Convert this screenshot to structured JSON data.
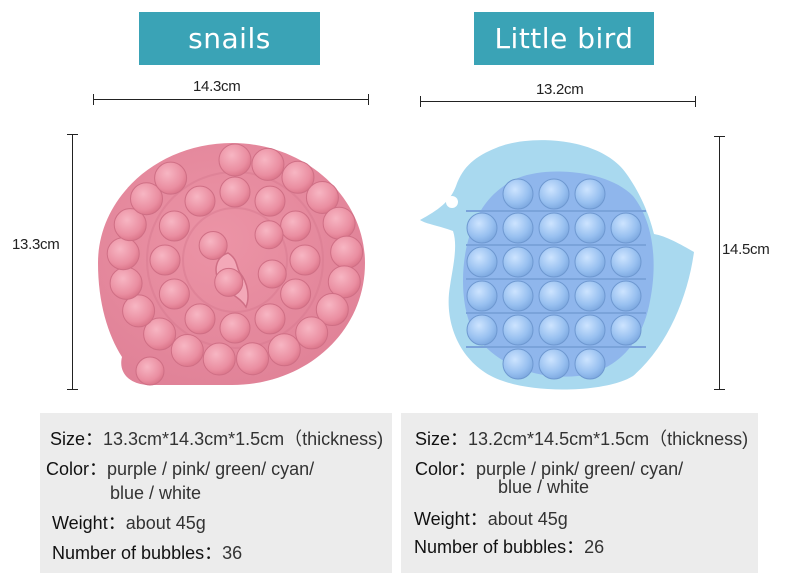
{
  "products": [
    {
      "name": "snails",
      "width_label": "14.3cm",
      "height_label": "13.3cm",
      "color": "#e98b9e",
      "bubbles": 36,
      "specs": {
        "size_key": "Size：",
        "size_val": "13.3cm*14.3cm*1.5cm（thickness)",
        "color_key": "Color：",
        "color_val_1": "purple / pink/ green/ cyan/",
        "color_val_2": "blue / white",
        "weight_key": "Weight：",
        "weight_val": "about 45g",
        "bubbles_key": "Number of bubbles：",
        "bubbles_val": "36"
      }
    },
    {
      "name": "Little bird",
      "width_label": "13.2cm",
      "height_label": "14.5cm",
      "color": "#8fb8ec",
      "body_color": "#a8d8ef",
      "bubbles": 26,
      "specs": {
        "size_key": "Size：",
        "size_val": "13.2cm*14.5cm*1.5cm（thickness)",
        "color_key": "Color：",
        "color_val_1": "purple / pink/ green/ cyan/",
        "color_val_2": "blue / white",
        "weight_key": "Weight：",
        "weight_val": "about 45g",
        "bubbles_key": "Number of bubbles：",
        "bubbles_val": "26"
      }
    }
  ]
}
